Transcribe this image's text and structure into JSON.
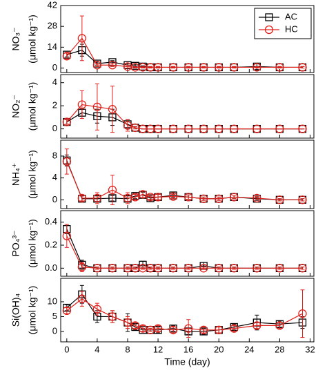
{
  "chart_data": [
    {
      "type": "line",
      "ylabel": [
        "NO₃⁻",
        "(μmol kg⁻¹)"
      ],
      "legend": "upper right",
      "x": [
        0,
        2,
        4,
        6,
        8,
        9,
        10,
        11,
        12,
        14,
        16,
        18,
        20,
        22,
        25,
        28,
        31
      ],
      "ylim": [
        -3,
        42
      ],
      "yticks": [
        0,
        14,
        28,
        42
      ],
      "series": [
        {
          "name": "AC",
          "color": "#000000",
          "marker": "square",
          "values": [
            9,
            12,
            3,
            4,
            2,
            1.5,
            1,
            0.5,
            0.5,
            0.5,
            0.5,
            0.5,
            0.5,
            0.5,
            1,
            0.5,
            0.5
          ],
          "errors": [
            1.5,
            4,
            1,
            1,
            1,
            1,
            0.5,
            0.5,
            0.5,
            0.5,
            0.5,
            0.5,
            0.5,
            0.5,
            2,
            0.5,
            0.5
          ]
        },
        {
          "name": "HC",
          "color": "#e0201b",
          "marker": "circle",
          "values": [
            8,
            20,
            2,
            2,
            1,
            0.5,
            0.5,
            0.5,
            0.5,
            0.5,
            0.5,
            0.5,
            0.5,
            0.5,
            0.5,
            0.5,
            0.5
          ],
          "errors": [
            2,
            15,
            1,
            1,
            1,
            0.5,
            0.5,
            0.5,
            0.5,
            0.5,
            0.5,
            0.5,
            0.5,
            0.5,
            0.5,
            0.5,
            0.5
          ]
        }
      ]
    },
    {
      "type": "line",
      "ylabel": [
        "NO₂⁻",
        "(μmol kg⁻¹)"
      ],
      "x": [
        0,
        2,
        4,
        6,
        8,
        9,
        10,
        11,
        12,
        14,
        16,
        18,
        20,
        22,
        25,
        28,
        31
      ],
      "ylim": [
        -0.8,
        4.7
      ],
      "yticks": [
        0,
        2,
        4
      ],
      "series": [
        {
          "color": "#000000",
          "marker": "square",
          "values": [
            0.6,
            1.4,
            1.1,
            1.0,
            0.4,
            0.1,
            0,
            0,
            0,
            0,
            0,
            0,
            0,
            0,
            0,
            0,
            0
          ],
          "errors": [
            0.2,
            0.3,
            0.6,
            0.7,
            0.4,
            0.1,
            0,
            0,
            0,
            0,
            0,
            0,
            0,
            0,
            0,
            0,
            0
          ]
        },
        {
          "color": "#e0201b",
          "marker": "circle",
          "values": [
            0.6,
            2.1,
            1.9,
            1.7,
            0.3,
            0.1,
            0,
            0,
            0,
            0,
            0,
            0,
            0,
            0,
            0,
            0,
            0
          ],
          "errors": [
            0.2,
            1.2,
            2,
            2,
            0.5,
            0.1,
            0,
            0,
            0,
            0,
            0,
            0,
            0,
            0,
            0,
            0,
            0
          ]
        }
      ]
    },
    {
      "type": "line",
      "ylabel": [
        "NH₄⁺",
        "(μmol kg⁻¹)"
      ],
      "x": [
        0,
        2,
        4,
        6,
        8,
        9,
        10,
        11,
        12,
        14,
        16,
        18,
        20,
        22,
        25,
        28,
        31
      ],
      "ylim": [
        -1.6,
        10.9
      ],
      "yticks": [
        0,
        4,
        8
      ],
      "series": [
        {
          "color": "#000000",
          "marker": "square",
          "values": [
            7.2,
            0.2,
            0.2,
            0.3,
            0.2,
            0.7,
            0.9,
            0.3,
            0.5,
            0.8,
            0.5,
            0.2,
            0.2,
            0.5,
            0.2,
            0,
            0
          ],
          "errors": [
            1,
            0.5,
            0.5,
            0.5,
            0.5,
            0.5,
            0.5,
            0.4,
            0.5,
            0.4,
            0.4,
            0.3,
            0.3,
            0.3,
            0.3,
            0.2,
            0.2
          ]
        },
        {
          "color": "#e0201b",
          "marker": "circle",
          "values": [
            7,
            0.3,
            0.3,
            1.8,
            0.3,
            0.5,
            1,
            0.5,
            0.5,
            0.6,
            0.5,
            0.2,
            0.2,
            0.5,
            0.3,
            0,
            0
          ],
          "errors": [
            2.3,
            0.5,
            1,
            2.7,
            1,
            0.5,
            0.6,
            0.4,
            0.5,
            0.4,
            0.4,
            0.3,
            0.3,
            0.3,
            0.3,
            0.2,
            0.2
          ]
        }
      ]
    },
    {
      "type": "line",
      "ylabel": [
        "PO₄³⁻",
        "(μmol kg⁻¹)"
      ],
      "x": [
        0,
        2,
        4,
        6,
        8,
        9,
        10,
        11,
        12,
        14,
        16,
        18,
        20,
        22,
        25,
        28,
        31
      ],
      "ylim": [
        -0.07,
        0.5
      ],
      "yticks": [
        {
          "value": 0,
          "label": "0.0"
        },
        0.2,
        0.4
      ],
      "series": [
        {
          "color": "#000000",
          "marker": "square",
          "values": [
            0.34,
            0.03,
            0,
            0,
            0,
            0,
            0.03,
            0,
            0,
            0,
            0,
            0.02,
            0,
            0,
            0,
            0,
            0
          ],
          "errors": [
            0.04,
            0.04,
            0.01,
            0.01,
            0.01,
            0.01,
            0.03,
            0.01,
            0.01,
            0.01,
            0.01,
            0.03,
            0.01,
            0.01,
            0.01,
            0.01,
            0.01
          ]
        },
        {
          "color": "#e0201b",
          "marker": "circle",
          "values": [
            0.28,
            0.01,
            0,
            0,
            0,
            0,
            0,
            0,
            0,
            0,
            0,
            0,
            0,
            0,
            0,
            0,
            0
          ],
          "errors": [
            0.1,
            0.04,
            0.01,
            0.01,
            0.01,
            0.01,
            0.01,
            0.01,
            0.01,
            0.01,
            0.01,
            0.01,
            0.01,
            0.01,
            0.01,
            0.01,
            0.01
          ]
        }
      ]
    },
    {
      "type": "line",
      "ylabel": [
        "Si(OH)₄",
        "(μmol kg⁻¹)"
      ],
      "x": [
        0,
        2,
        4,
        6,
        8,
        9,
        10,
        11,
        12,
        14,
        16,
        18,
        20,
        22,
        25,
        28,
        31
      ],
      "ylim": [
        -3.5,
        17.9
      ],
      "yticks": [
        0,
        5,
        10
      ],
      "xlim": [
        -0.8,
        32.5
      ],
      "xticks": [
        0,
        4,
        8,
        12,
        16,
        20,
        24,
        28,
        32
      ],
      "xlabel": "Time (day)",
      "series": [
        {
          "color": "#000000",
          "marker": "square",
          "values": [
            8,
            12.5,
            5,
            5,
            3,
            1.5,
            0.5,
            0.5,
            0.5,
            1,
            0,
            0,
            0.5,
            1.5,
            3,
            2.5,
            3
          ],
          "errors": [
            1,
            3,
            2,
            2,
            3,
            1,
            0.5,
            0.5,
            1,
            1,
            1,
            1,
            1,
            1,
            2.5,
            1,
            2
          ]
        },
        {
          "color": "#e0201b",
          "marker": "circle",
          "values": [
            7,
            11,
            7.5,
            5,
            3,
            2,
            1,
            0.5,
            1,
            0.5,
            1,
            0.5,
            0.5,
            1,
            2,
            2,
            6
          ],
          "errors": [
            1,
            2.5,
            2,
            2,
            2,
            1,
            1,
            0.5,
            1,
            1,
            3,
            1,
            1,
            1,
            1,
            1,
            8
          ]
        }
      ]
    }
  ]
}
